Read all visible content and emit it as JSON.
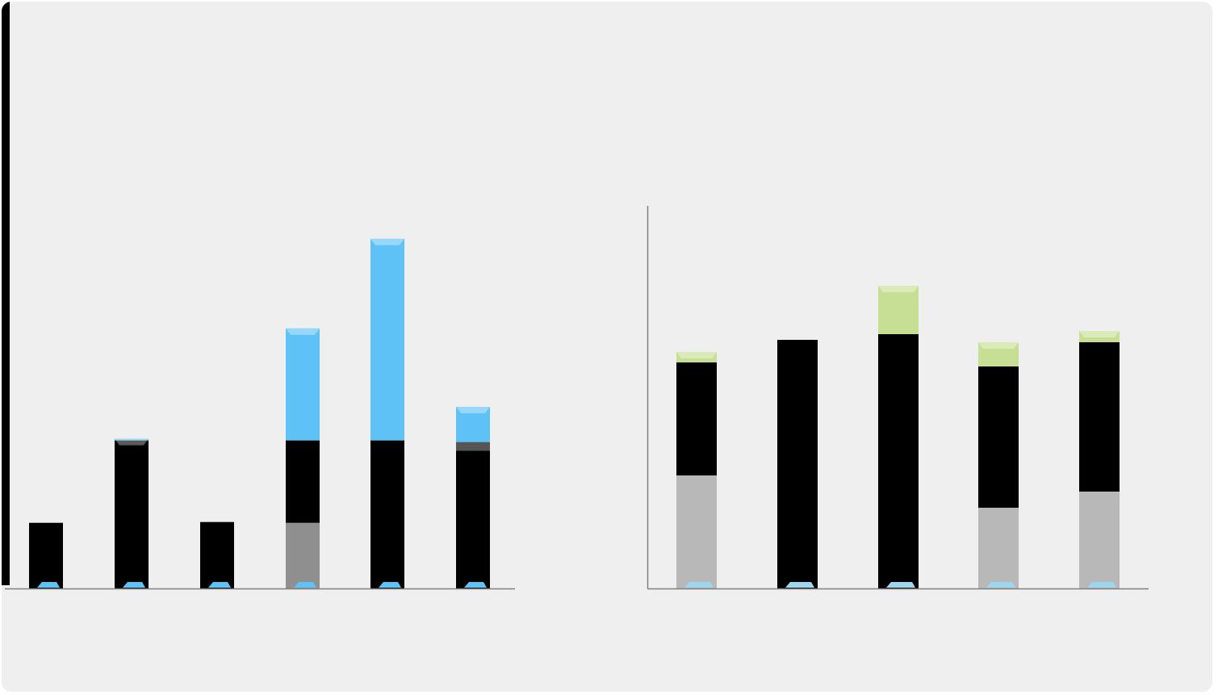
{
  "colors": {
    "panel_bg": "#efefef",
    "black": "#000000",
    "gray": "#8f8f8f",
    "dark_gray": "#555555",
    "light_gray": "#b8b8b8",
    "blue": "#5ec2f7",
    "light_blue": "#9ed6ef",
    "green": "#c6df94",
    "white": "#ffffff",
    "axis": "#808080"
  },
  "chart_data": [
    {
      "type": "bar",
      "stacked": true,
      "title": "",
      "xlabel": "",
      "ylabel": "",
      "categories": [
        "",
        "",
        "",
        "",
        "",
        ""
      ],
      "ylim": [
        0,
        460
      ],
      "grid": false,
      "legend": "none",
      "series": [
        {
          "color": "#8f8f8f",
          "values": [
            0,
            0,
            0,
            82,
            0,
            0
          ]
        },
        {
          "color": "#000000",
          "values": [
            82,
            185,
            83,
            103,
            185,
            172
          ]
        },
        {
          "color": "#555555",
          "values": [
            0,
            0,
            0,
            0,
            0,
            11
          ]
        },
        {
          "color": "#5ec2f7",
          "values": [
            0,
            2,
            0,
            140,
            252,
            44
          ]
        }
      ]
    },
    {
      "type": "bar",
      "stacked": true,
      "title": "",
      "xlabel": "",
      "ylabel": "",
      "categories": [
        "",
        "",
        "",
        "",
        ""
      ],
      "ylim": [
        0,
        475
      ],
      "grid": false,
      "legend": "none",
      "series": [
        {
          "color": "#b8b8b8",
          "values": [
            140,
            0,
            0,
            100,
            120
          ]
        },
        {
          "color": "#000000",
          "values": [
            140,
            308,
            315,
            175,
            185
          ]
        },
        {
          "color": "#c6df94",
          "values": [
            13,
            0,
            60,
            30,
            14
          ]
        }
      ]
    }
  ]
}
